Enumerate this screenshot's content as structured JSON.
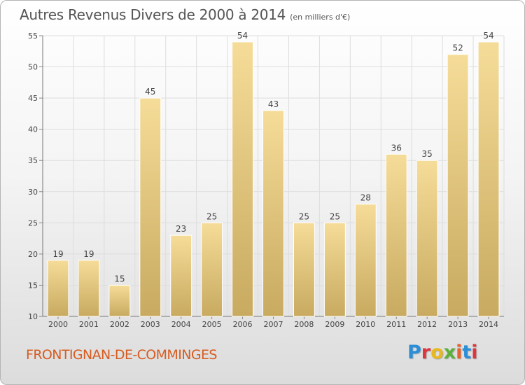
{
  "header": {
    "title": "Autres Revenus Divers de 2000 à 2014",
    "unit_note": "(en milliers d'€)"
  },
  "footer": {
    "commune": "FRONTIGNAN-DE-COMMINGES",
    "brand": "Proxiti",
    "brand_colors": [
      "#2a8fd8",
      "#e0353d",
      "#e8b820",
      "#5bb03a",
      "#e8602c",
      "#2a8fd8",
      "#e0353d"
    ]
  },
  "chart_data": {
    "type": "bar",
    "title": "Autres Revenus Divers de 2000 à 2014",
    "xlabel": "",
    "ylabel": "",
    "categories": [
      "2000",
      "2001",
      "2002",
      "2003",
      "2004",
      "2005",
      "2006",
      "2007",
      "2008",
      "2009",
      "2010",
      "2011",
      "2012",
      "2013",
      "2014"
    ],
    "values": [
      19,
      19,
      15,
      45,
      23,
      25,
      54,
      43,
      25,
      25,
      28,
      36,
      35,
      52,
      54
    ],
    "ylim": [
      10,
      55
    ],
    "yticks": [
      10,
      15,
      20,
      25,
      30,
      35,
      40,
      45,
      50,
      55
    ],
    "grid": true,
    "legend": "none",
    "bar_color_top": "#f5dc98",
    "bar_color_bottom": "#c8aa60"
  }
}
